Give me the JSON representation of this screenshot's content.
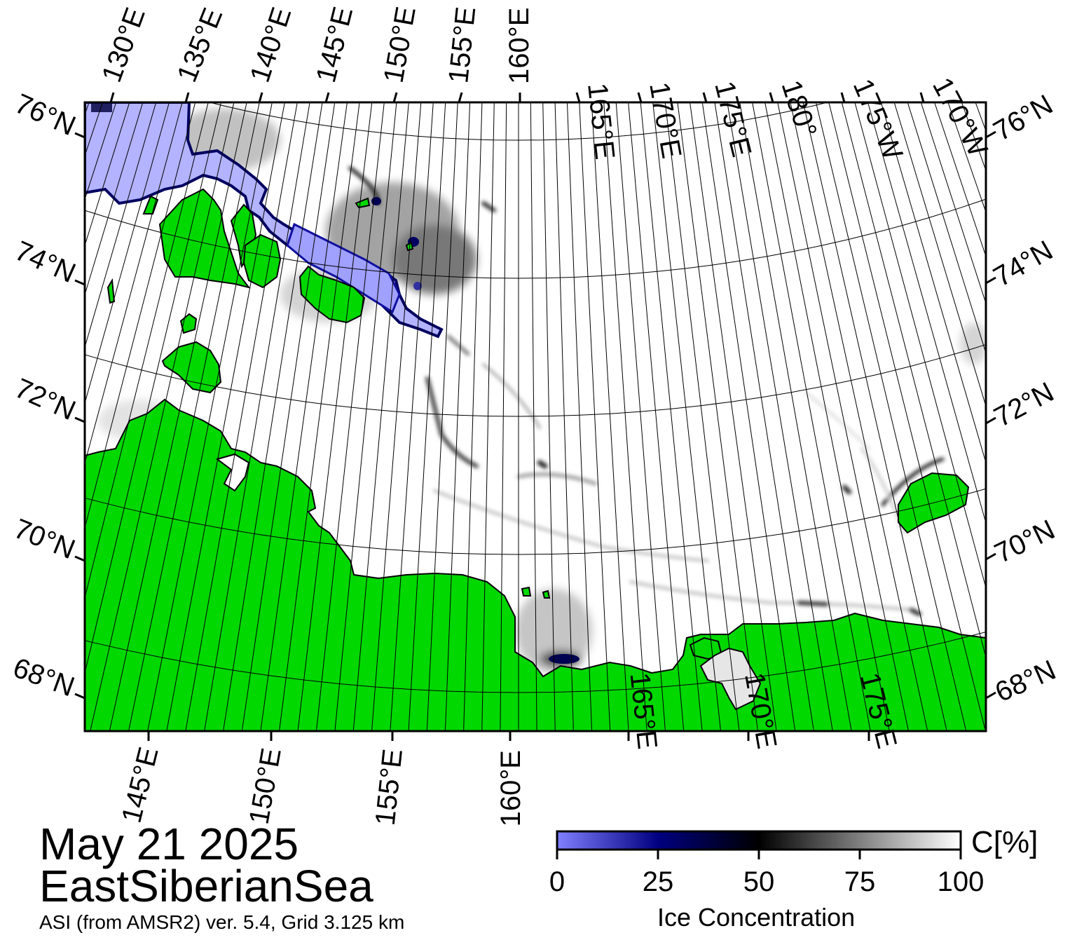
{
  "map": {
    "date": "May 21 2025",
    "region": "EastSiberianSea",
    "product": "ASI (from AMSR2) ver. 5.4,  Grid 3.125 km",
    "colors": {
      "land": "#00d800",
      "land_edge": "#000000",
      "open_water_low": "#8080ff",
      "ice_mid": "#000080",
      "ice_50": "#000000",
      "ice_full": "#ffffff",
      "coast_gray": "#808080",
      "grid": "#000000"
    },
    "top_lon_labels": [
      "130°E",
      "135°E",
      "140°E",
      "145°E",
      "150°E",
      "155°E",
      "160°E",
      "165°E",
      "170°E",
      "175°E",
      "180°",
      "175°W",
      "170°W"
    ],
    "bottom_lon_labels": [
      "145°E",
      "150°E",
      "155°E",
      "160°E",
      "165°E",
      "170°E",
      "175°E"
    ],
    "left_lat_labels": [
      "76°N",
      "74°N",
      "72°N",
      "70°N",
      "68°N"
    ],
    "right_lat_labels": [
      "76°N",
      "74°N",
      "72°N",
      "70°N",
      "68°N"
    ]
  },
  "colorbar": {
    "title": "Ice Concentration",
    "unit": "C[%]",
    "ticks": [
      "0",
      "25",
      "50",
      "75",
      "100"
    ],
    "min": 0,
    "max": 100,
    "stops": [
      {
        "value": 0,
        "color": "#8080ff"
      },
      {
        "value": 25,
        "color": "#000080"
      },
      {
        "value": 50,
        "color": "#000000"
      },
      {
        "value": 75,
        "color": "#808080"
      },
      {
        "value": 100,
        "color": "#ffffff"
      }
    ]
  }
}
